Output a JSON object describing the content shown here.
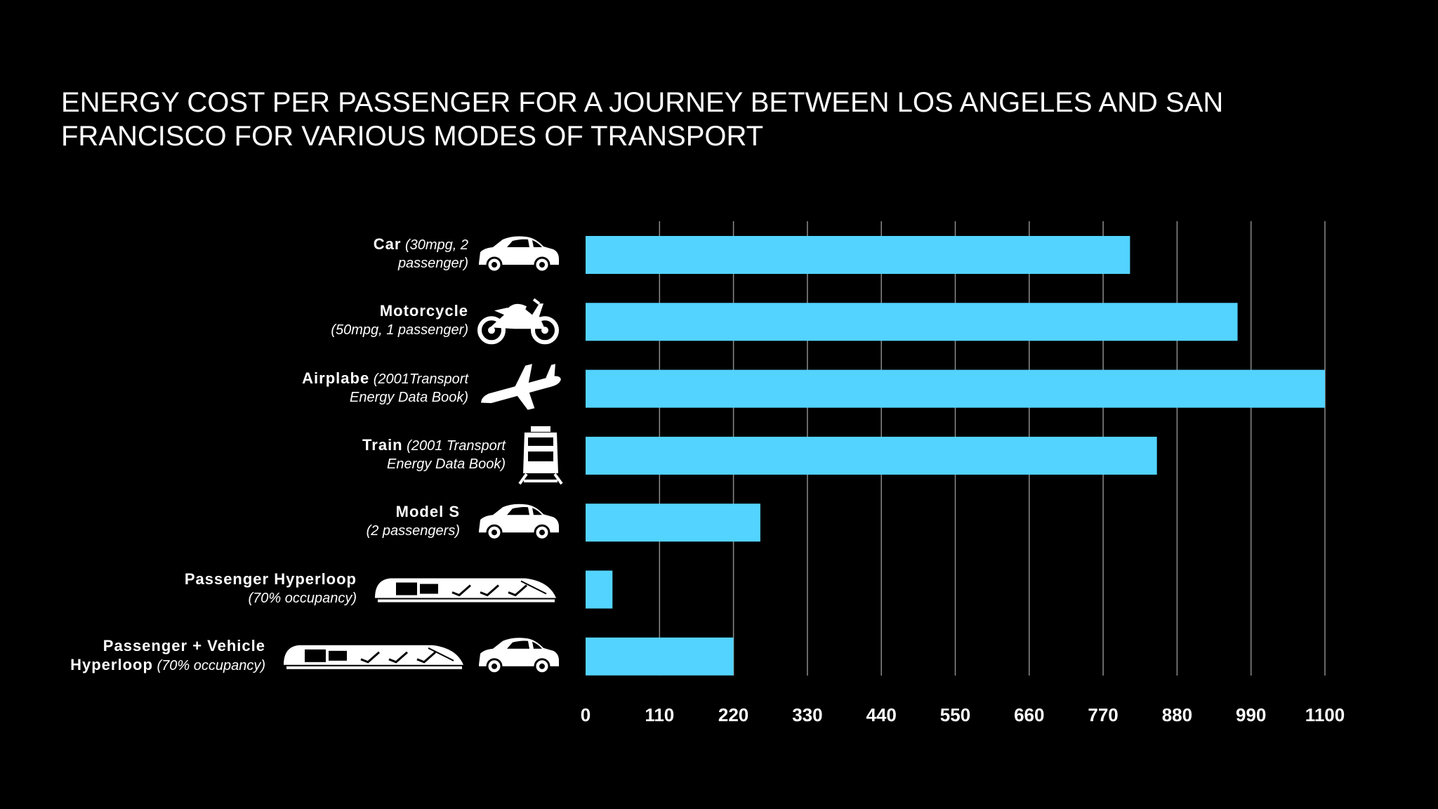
{
  "title": {
    "line1": "ENERGY COST PER PASSENGER FOR A JOURNEY BETWEEN LOS  ANGELES AND  SAN",
    "line2": "FRANCISCO FOR VARIOUS MODES OF  TRANSPORT"
  },
  "colors": {
    "bar": "#53d3ff",
    "grid": "#8a8a8a",
    "background": "#000000",
    "text": "#ffffff"
  },
  "chart_data": {
    "type": "bar",
    "orientation": "horizontal",
    "title": "ENERGY COST PER PASSENGER FOR A JOURNEY BETWEEN LOS  ANGELES AND  SAN FRANCISCO FOR VARIOUS MODES OF  TRANSPORT",
    "categories": [
      {
        "name": "Car",
        "note": "(30mpg, 2",
        "note2": "passenger)",
        "icon": "car-icon"
      },
      {
        "name": "Motorcycle",
        "note": "",
        "note2": "(50mpg, 1 passenger)",
        "icon": "motorcycle-icon"
      },
      {
        "name": "Airplabe",
        "note": "(2001Transport",
        "note2": "Energy Data  Book)",
        "icon": "airplane-icon"
      },
      {
        "name": "Train",
        "note": "(2001 Transport",
        "note2": "Energy Data  Book)",
        "icon": "train-icon"
      },
      {
        "name": "Model S",
        "note": "",
        "note2": "(2 passengers)",
        "icon": "car-icon"
      },
      {
        "name": "Passenger Hyperloop",
        "note": "",
        "note2": "(70% occupancy)",
        "icon": "hyperloop-icon"
      },
      {
        "name": "Passenger  + Vehicle",
        "note": "",
        "note2": "Hyperloop",
        "note3": "(70% occupancy)",
        "icon": "hyperloop-car-icon"
      }
    ],
    "values": [
      810,
      970,
      1100,
      850,
      260,
      40,
      220
    ],
    "xlim": [
      0,
      1100
    ],
    "xticks": [
      "0",
      "110",
      "220",
      "330",
      "440",
      "550",
      "660",
      "770",
      "880",
      "990",
      "1100"
    ],
    "xlabel": "",
    "ylabel": "",
    "grid": "vertical",
    "legend": "none"
  }
}
